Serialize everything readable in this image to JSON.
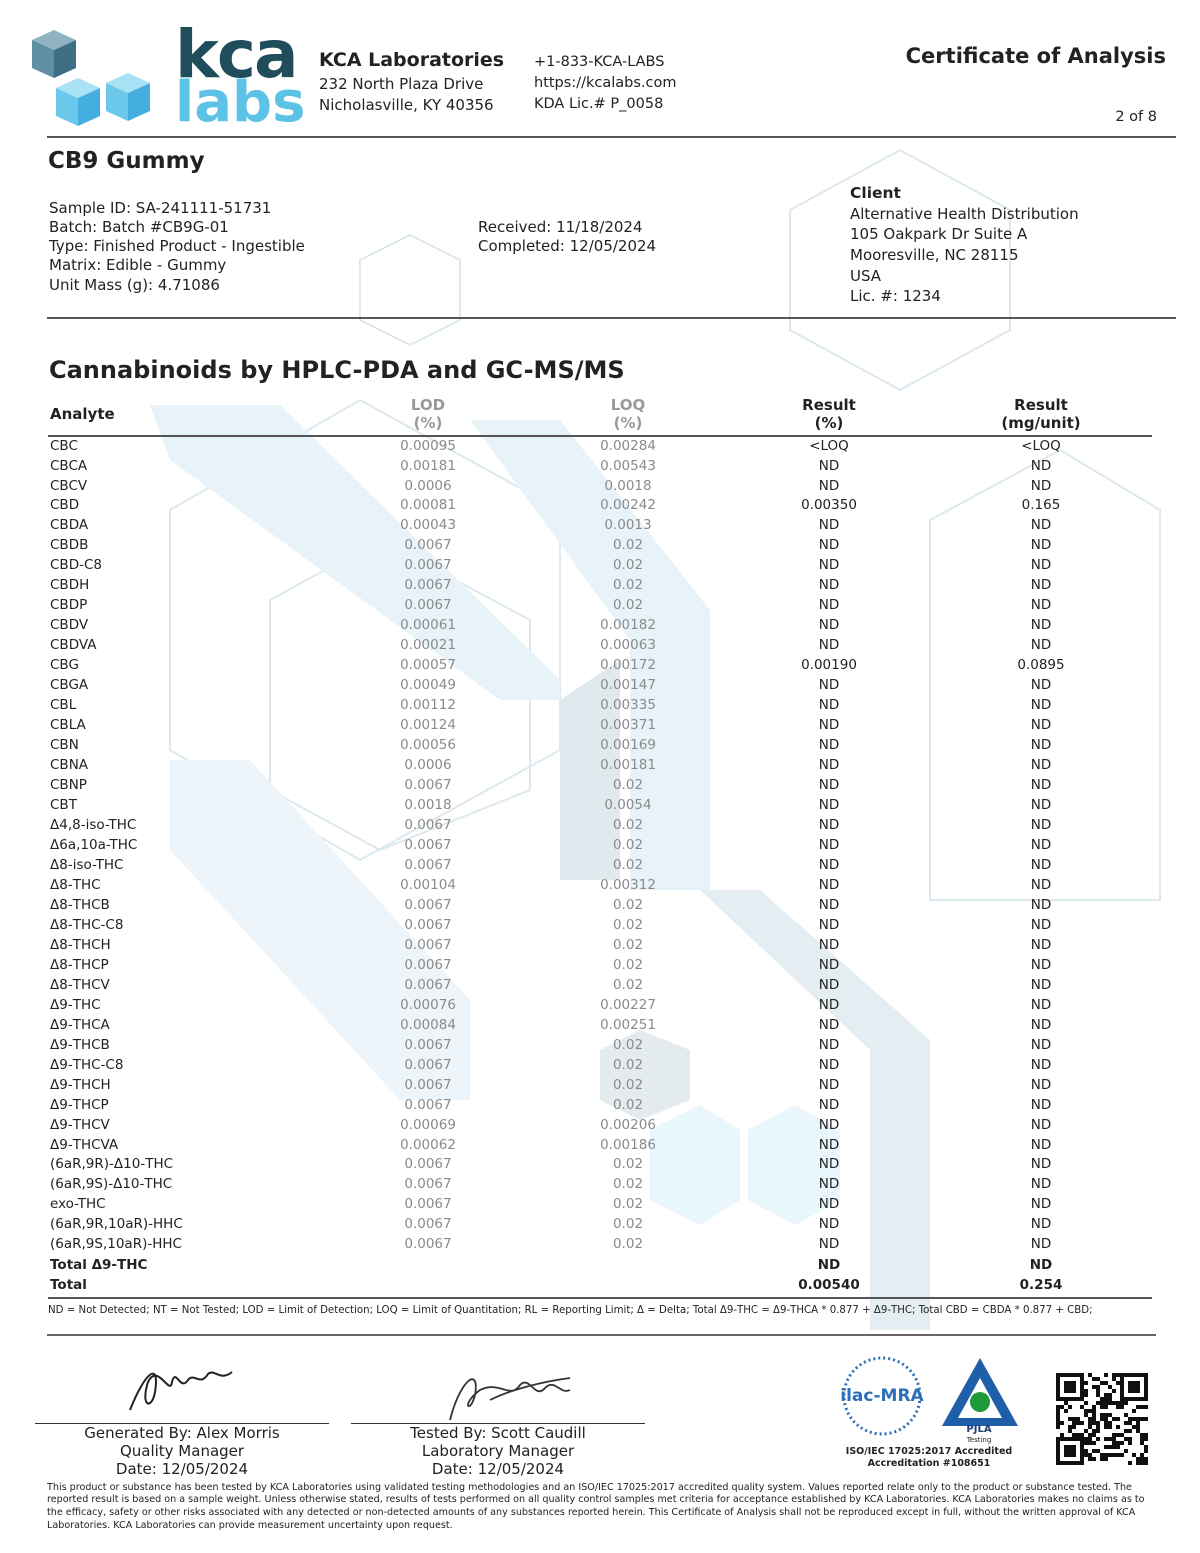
{
  "header": {
    "logo_top": "kca",
    "logo_bottom": "labs",
    "company": "KCA Laboratories",
    "address": [
      "232 North Plaza Drive",
      "Nicholasville, KY 40356"
    ],
    "contact": [
      "+1-833-KCA-LABS",
      "https://kcalabs.com",
      "KDA Lic.# P_0058"
    ],
    "doc_title": "Certificate of Analysis",
    "page": "2 of 8"
  },
  "product": {
    "name": "CB9 Gummy",
    "details": [
      "Sample ID: SA-241111-51731",
      "Batch: Batch #CB9G-01",
      "Type: Finished Product - Ingestible",
      "Matrix: Edible - Gummy",
      "Unit Mass (g): 4.71086"
    ],
    "dates": [
      "Received: 11/18/2024",
      "Completed: 12/05/2024"
    ],
    "client_label": "Client",
    "client": [
      "Alternative Health Distribution",
      "105 Oakpark Dr Suite A",
      "Mooresville, NC 28115",
      "USA",
      "Lic. #: 1234"
    ]
  },
  "table": {
    "title": "Cannabinoids by HPLC-PDA and GC-MS/MS",
    "columns": [
      [
        "Analyte"
      ],
      [
        "LOD",
        "(%)"
      ],
      [
        "LOQ",
        "(%)"
      ],
      [
        "Result",
        "(%)"
      ],
      [
        "Result",
        "(mg/unit)"
      ]
    ],
    "rows": [
      [
        "CBC",
        "0.00095",
        "0.00284",
        "<LOQ",
        "<LOQ"
      ],
      [
        "CBCA",
        "0.00181",
        "0.00543",
        "ND",
        "ND"
      ],
      [
        "CBCV",
        "0.0006",
        "0.0018",
        "ND",
        "ND"
      ],
      [
        "CBD",
        "0.00081",
        "0.00242",
        "0.00350",
        "0.165"
      ],
      [
        "CBDA",
        "0.00043",
        "0.0013",
        "ND",
        "ND"
      ],
      [
        "CBDB",
        "0.0067",
        "0.02",
        "ND",
        "ND"
      ],
      [
        "CBD-C8",
        "0.0067",
        "0.02",
        "ND",
        "ND"
      ],
      [
        "CBDH",
        "0.0067",
        "0.02",
        "ND",
        "ND"
      ],
      [
        "CBDP",
        "0.0067",
        "0.02",
        "ND",
        "ND"
      ],
      [
        "CBDV",
        "0.00061",
        "0.00182",
        "ND",
        "ND"
      ],
      [
        "CBDVA",
        "0.00021",
        "0.00063",
        "ND",
        "ND"
      ],
      [
        "CBG",
        "0.00057",
        "0.00172",
        "0.00190",
        "0.0895"
      ],
      [
        "CBGA",
        "0.00049",
        "0.00147",
        "ND",
        "ND"
      ],
      [
        "CBL",
        "0.00112",
        "0.00335",
        "ND",
        "ND"
      ],
      [
        "CBLA",
        "0.00124",
        "0.00371",
        "ND",
        "ND"
      ],
      [
        "CBN",
        "0.00056",
        "0.00169",
        "ND",
        "ND"
      ],
      [
        "CBNA",
        "0.0006",
        "0.00181",
        "ND",
        "ND"
      ],
      [
        "CBNP",
        "0.0067",
        "0.02",
        "ND",
        "ND"
      ],
      [
        "CBT",
        "0.0018",
        "0.0054",
        "ND",
        "ND"
      ],
      [
        "Δ4,8-iso-THC",
        "0.0067",
        "0.02",
        "ND",
        "ND"
      ],
      [
        "Δ6a,10a-THC",
        "0.0067",
        "0.02",
        "ND",
        "ND"
      ],
      [
        "Δ8-iso-THC",
        "0.0067",
        "0.02",
        "ND",
        "ND"
      ],
      [
        "Δ8-THC",
        "0.00104",
        "0.00312",
        "ND",
        "ND"
      ],
      [
        "Δ8-THCB",
        "0.0067",
        "0.02",
        "ND",
        "ND"
      ],
      [
        "Δ8-THC-C8",
        "0.0067",
        "0.02",
        "ND",
        "ND"
      ],
      [
        "Δ8-THCH",
        "0.0067",
        "0.02",
        "ND",
        "ND"
      ],
      [
        "Δ8-THCP",
        "0.0067",
        "0.02",
        "ND",
        "ND"
      ],
      [
        "Δ8-THCV",
        "0.0067",
        "0.02",
        "ND",
        "ND"
      ],
      [
        "Δ9-THC",
        "0.00076",
        "0.00227",
        "ND",
        "ND"
      ],
      [
        "Δ9-THCA",
        "0.00084",
        "0.00251",
        "ND",
        "ND"
      ],
      [
        "Δ9-THCB",
        "0.0067",
        "0.02",
        "ND",
        "ND"
      ],
      [
        "Δ9-THC-C8",
        "0.0067",
        "0.02",
        "ND",
        "ND"
      ],
      [
        "Δ9-THCH",
        "0.0067",
        "0.02",
        "ND",
        "ND"
      ],
      [
        "Δ9-THCP",
        "0.0067",
        "0.02",
        "ND",
        "ND"
      ],
      [
        "Δ9-THCV",
        "0.00069",
        "0.00206",
        "ND",
        "ND"
      ],
      [
        "Δ9-THCVA",
        "0.00062",
        "0.00186",
        "ND",
        "ND"
      ],
      [
        "(6aR,9R)-Δ10-THC",
        "0.0067",
        "0.02",
        "ND",
        "ND"
      ],
      [
        "(6aR,9S)-Δ10-THC",
        "0.0067",
        "0.02",
        "ND",
        "ND"
      ],
      [
        "exo-THC",
        "0.0067",
        "0.02",
        "ND",
        "ND"
      ],
      [
        "(6aR,9R,10aR)-HHC",
        "0.0067",
        "0.02",
        "ND",
        "ND"
      ],
      [
        "(6aR,9S,10aR)-HHC",
        "0.0067",
        "0.02",
        "ND",
        "ND"
      ]
    ],
    "totals": [
      [
        "Total Δ9-THC",
        "ND",
        "ND"
      ],
      [
        "Total",
        "0.00540",
        "0.254"
      ]
    ],
    "footnote": "ND = Not Detected; NT = Not Tested; LOD = Limit of Detection; LOQ = Limit of Quantitation; RL = Reporting Limit; Δ = Delta; Total Δ9-THC = Δ9-THCA * 0.877 + Δ9-THC; Total CBD = CBDA * 0.877 + CBD;"
  },
  "signatures": [
    {
      "name": "Generated By: Alex Morris",
      "role": "Quality Manager",
      "date": "Date: 12/05/2024"
    },
    {
      "name": "Tested By: Scott Caudill",
      "role": "Laboratory Manager",
      "date": "Date: 12/05/2024"
    }
  ],
  "accreditation": {
    "ilac": "ilac-MRA",
    "pjla": "PJLA",
    "pjla_sub": "Testing",
    "text": [
      "ISO/IEC 17025:2017 Accredited",
      "Accreditation #108651"
    ]
  },
  "disclaimer": "This product or substance has been tested by KCA Laboratories using validated testing methodologies and an ISO/IEC 17025:2017 accredited quality system. Values reported relate only to the product or substance tested. The reported result is based on a sample weight. Unless otherwise stated, results of tests performed on all quality control samples met criteria for acceptance established by KCA Laboratories. KCA Laboratories makes no claims as to the efficacy, safety or other risks associated with any detected or non-detected amounts of any substances reported herein. This Certificate of Analysis shall not be reproduced except in full, without the written approval of KCA Laboratories. KCA Laboratories can provide measurement uncertainty upon request."
}
